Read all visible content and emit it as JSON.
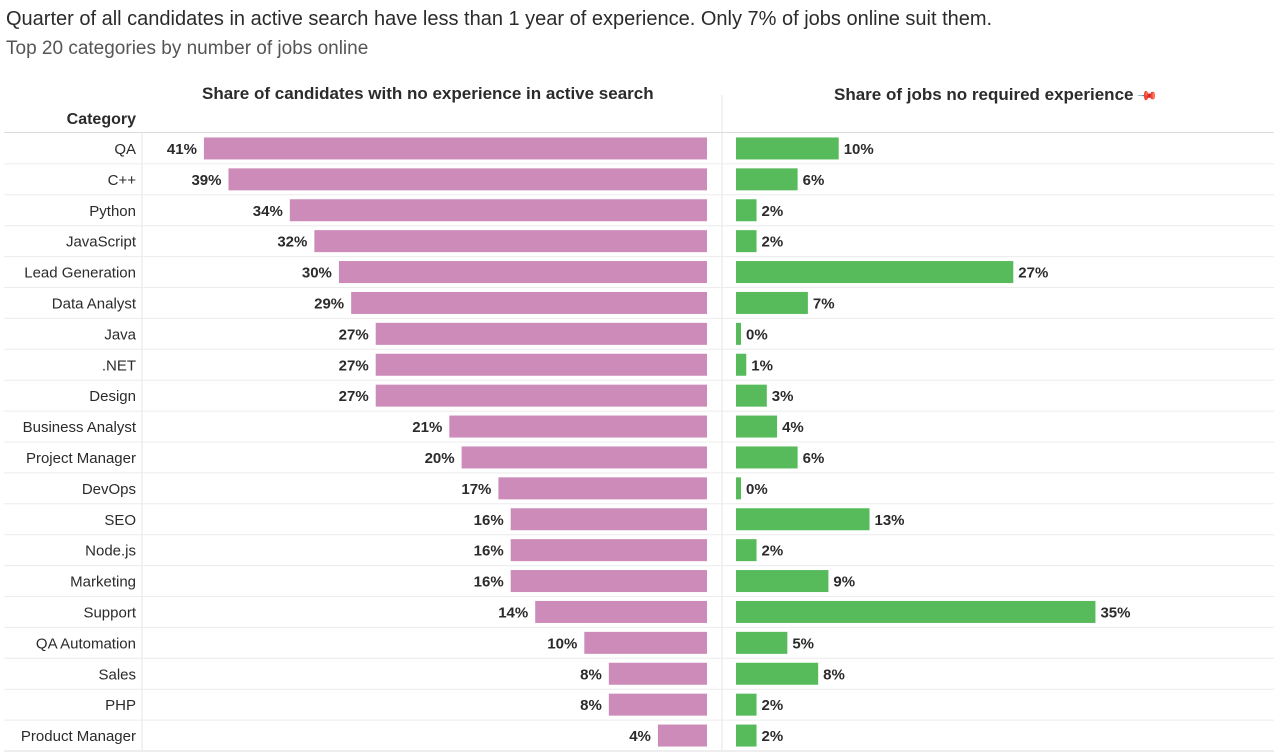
{
  "header": {
    "title": "Quarter of all candidates in active search have less than 1 year of experience.  Only 7% of  jobs online suit them.",
    "subtitle": "Top 20 categories by number of jobs online"
  },
  "chart_data": {
    "type": "bar",
    "title": "Quarter of all candidates in active search have less than 1 year of experience.  Only 7% of  jobs online suit them.",
    "subtitle": "Top 20 categories by number of jobs online",
    "category_label": "Category",
    "categories": [
      "QA",
      "C++",
      "Python",
      "JavaScript",
      "Lead Generation",
      "Data Analyst",
      "Java",
      ".NET",
      "Design",
      "Business Analyst",
      "Project Manager",
      "DevOps",
      "SEO",
      "Node.js",
      "Marketing",
      "Support",
      "QA Automation",
      "Sales",
      "PHP",
      "Product Manager"
    ],
    "series": [
      {
        "name": "Share of candidates with no experience in active search",
        "values": [
          41,
          39,
          34,
          32,
          30,
          29,
          27,
          27,
          27,
          21,
          20,
          17,
          16,
          16,
          16,
          14,
          10,
          8,
          8,
          4
        ],
        "labels": [
          "41%",
          "39%",
          "34%",
          "32%",
          "30%",
          "29%",
          "27%",
          "27%",
          "27%",
          "21%",
          "20%",
          "17%",
          "16%",
          "16%",
          "16%",
          "14%",
          "10%",
          "8%",
          "8%",
          "4%"
        ],
        "color": "#cc8bb8",
        "direction": "left"
      },
      {
        "name": "Share of jobs no required experience",
        "values": [
          10,
          6,
          2,
          2,
          27,
          7,
          0,
          1,
          3,
          4,
          6,
          0,
          13,
          2,
          9,
          35,
          5,
          8,
          2,
          2
        ],
        "labels": [
          "10%",
          "6%",
          "2%",
          "2%",
          "27%",
          "7%",
          "0%",
          "1%",
          "3%",
          "4%",
          "6%",
          "0%",
          "13%",
          "2%",
          "9%",
          "35%",
          "5%",
          "8%",
          "2%",
          "2%"
        ],
        "color": "#57bb5b",
        "direction": "right"
      }
    ],
    "legend": "none",
    "grid": "row separators"
  }
}
